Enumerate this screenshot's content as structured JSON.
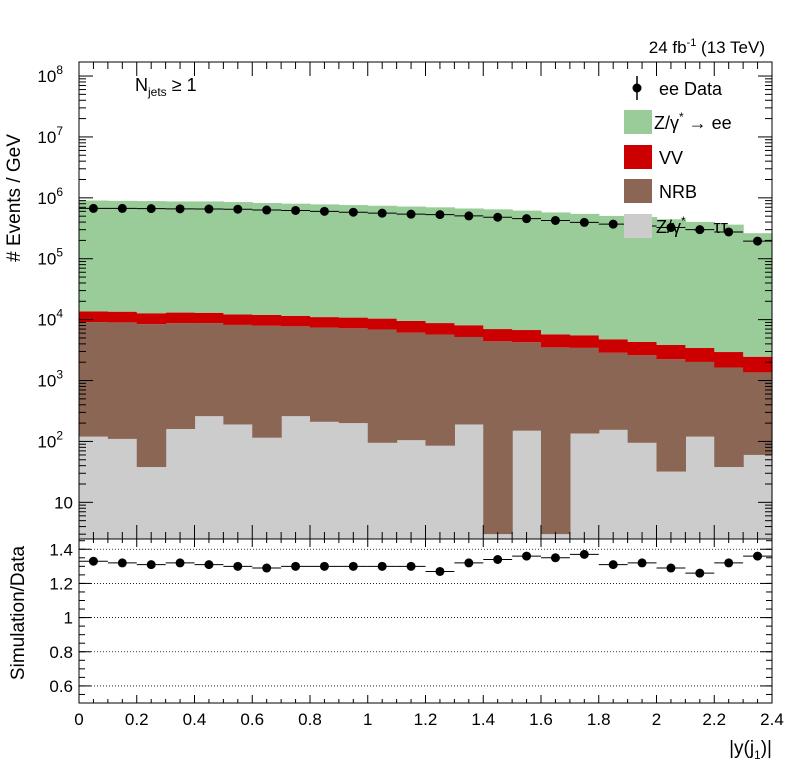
{
  "header": {
    "lumi_text": "24 fb",
    "lumi_exp": "-1",
    "energy_text": " (13 TeV)",
    "annotation_main": "N",
    "annotation_sub": "jets",
    "annotation_rest": " ≥ 1"
  },
  "legend": {
    "items": [
      {
        "label": "ee Data",
        "kind": "marker"
      },
      {
        "label": "Z/γ",
        "sup": "*",
        "rest": " → ee",
        "kind": "fill",
        "color": "#99cc99"
      },
      {
        "label": "VV",
        "kind": "fill",
        "color": "#cc0000"
      },
      {
        "label": "NRB",
        "kind": "fill",
        "color": "#8b6655"
      },
      {
        "label": "Z/γ",
        "sup": "*",
        "rest": " → ττ",
        "kind": "fill",
        "color": "#cccccc"
      }
    ]
  },
  "chart_data": [
    {
      "type": "bar",
      "subtype": "stacked-histogram-log",
      "ylabel": "# Events / GeV",
      "xlim": [
        0,
        2.4
      ],
      "ylim": [
        2.5,
        170000000
      ],
      "yscale": "log",
      "y_tick_labels": [
        "10",
        "10²",
        "10³",
        "10⁴",
        "10⁵",
        "10⁶",
        "10⁷",
        "10⁸"
      ],
      "bin_edges": [
        0,
        0.1,
        0.2,
        0.3,
        0.4,
        0.5,
        0.6,
        0.7,
        0.8,
        0.9,
        1.0,
        1.1,
        1.2,
        1.3,
        1.4,
        1.5,
        1.6,
        1.7,
        1.8,
        1.9,
        2.0,
        2.1,
        2.2,
        2.3,
        2.4
      ],
      "series": [
        {
          "name": "Z/γ* → ττ",
          "color": "#cccccc",
          "values": [
            120,
            110,
            38,
            160,
            260,
            190,
            115,
            260,
            210,
            200,
            95,
            105,
            85,
            190,
            3,
            150,
            3,
            135,
            155,
            95,
            32,
            120,
            38,
            60
          ]
        },
        {
          "name": "NRB",
          "color": "#8b6655",
          "values": [
            9000,
            8900,
            8400,
            8600,
            8500,
            8000,
            7800,
            7500,
            7200,
            7000,
            6800,
            6000,
            5600,
            5000,
            4400,
            4100,
            3500,
            3300,
            2700,
            2500,
            2200,
            1900,
            1600,
            1300
          ]
        },
        {
          "name": "VV",
          "color": "#cc0000",
          "values": [
            4500,
            4500,
            4300,
            4300,
            4200,
            4000,
            4000,
            3800,
            3600,
            3600,
            3500,
            3400,
            3100,
            2900,
            2600,
            2500,
            2200,
            2100,
            1900,
            1700,
            1600,
            1400,
            1300,
            1100
          ]
        },
        {
          "name": "Z/γ* → ee",
          "color": "#99cc99",
          "values": [
            890000,
            880000,
            870000,
            860000,
            860000,
            840000,
            810000,
            790000,
            770000,
            750000,
            730000,
            710000,
            690000,
            660000,
            640000,
            610000,
            570000,
            540000,
            500000,
            480000,
            440000,
            400000,
            360000,
            260000
          ]
        }
      ],
      "data_series": {
        "name": "ee Data",
        "values": [
          670000,
          670000,
          665000,
          660000,
          655000,
          650000,
          630000,
          620000,
          600000,
          580000,
          560000,
          540000,
          530000,
          505000,
          480000,
          455000,
          425000,
          395000,
          370000,
          345000,
          325000,
          300000,
          275000,
          195000
        ]
      }
    },
    {
      "type": "scatter",
      "ylabel": "Simulation/Data",
      "xlabel": "|y(j",
      "xlabel_sub": "1",
      "xlabel_end": ")|",
      "xlim": [
        0,
        2.4
      ],
      "ylim": [
        0.5,
        1.46
      ],
      "grid": true,
      "x_tick_labels": [
        "0",
        "0.2",
        "0.4",
        "0.6",
        "0.8",
        "1",
        "1.2",
        "1.4",
        "1.6",
        "1.8",
        "2",
        "2.2",
        "2.4"
      ],
      "y_tick_labels": [
        "0.6",
        "0.8",
        "1",
        "1.2",
        "1.4"
      ],
      "x": [
        0.05,
        0.15,
        0.25,
        0.35,
        0.45,
        0.55,
        0.65,
        0.75,
        0.85,
        0.95,
        1.05,
        1.15,
        1.25,
        1.35,
        1.45,
        1.55,
        1.65,
        1.75,
        1.85,
        1.95,
        2.05,
        2.15,
        2.25,
        2.35
      ],
      "values": [
        1.33,
        1.32,
        1.31,
        1.32,
        1.31,
        1.3,
        1.29,
        1.3,
        1.3,
        1.3,
        1.3,
        1.3,
        1.27,
        1.32,
        1.34,
        1.36,
        1.35,
        1.37,
        1.31,
        1.32,
        1.29,
        1.26,
        1.32,
        1.36
      ]
    }
  ]
}
